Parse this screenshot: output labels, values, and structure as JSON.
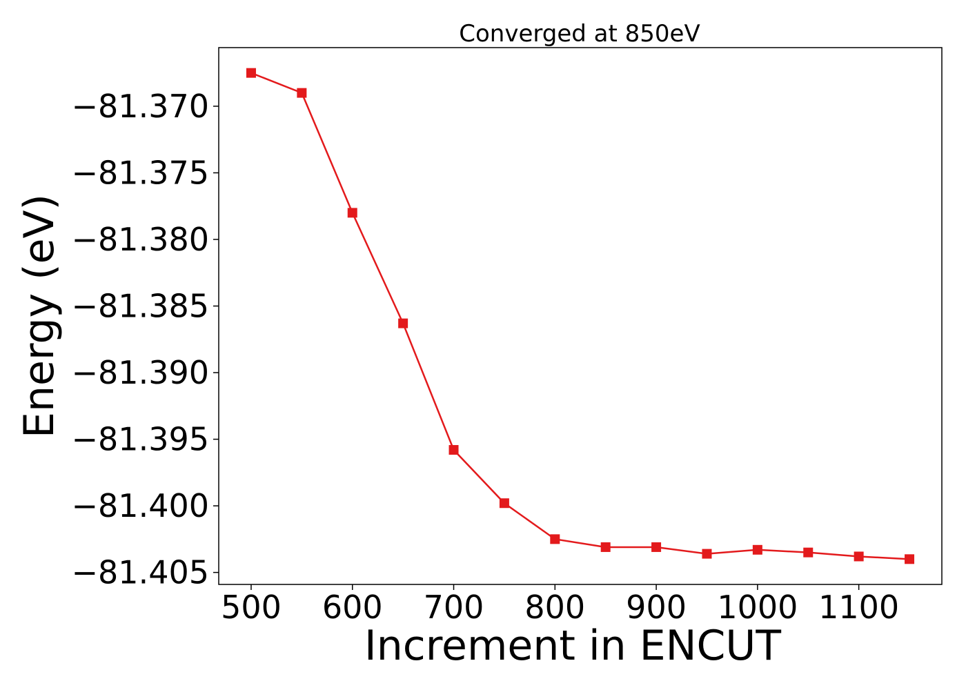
{
  "chart_data": {
    "type": "line",
    "title": "Converged at 850eV",
    "xlabel": "Increment in ENCUT",
    "ylabel": "Energy (eV)",
    "xlim": [
      468,
      1182
    ],
    "ylim": [
      -81.4059,
      -81.3656
    ],
    "x_ticks": [
      500,
      600,
      700,
      800,
      900,
      1000,
      1100
    ],
    "x_tick_labels": [
      "500",
      "600",
      "700",
      "800",
      "900",
      "1000",
      "1100"
    ],
    "y_ticks": [
      -81.37,
      -81.375,
      -81.38,
      -81.385,
      -81.39,
      -81.395,
      -81.4,
      -81.405
    ],
    "y_tick_labels": [
      "−81.370",
      "−81.375",
      "−81.380",
      "−81.385",
      "−81.390",
      "−81.395",
      "−81.400",
      "−81.405"
    ],
    "grid": false,
    "legend": "none",
    "series": [
      {
        "color": "#e31a1c",
        "marker": "square",
        "x": [
          500,
          550,
          600,
          650,
          700,
          750,
          800,
          850,
          900,
          950,
          1000,
          1050,
          1100,
          1150
        ],
        "y": [
          -81.3675,
          -81.369,
          -81.378,
          -81.3863,
          -81.3958,
          -81.3998,
          -81.4025,
          -81.4031,
          -81.4031,
          -81.4036,
          -81.4033,
          -81.4035,
          -81.4038,
          -81.404
        ]
      }
    ]
  }
}
